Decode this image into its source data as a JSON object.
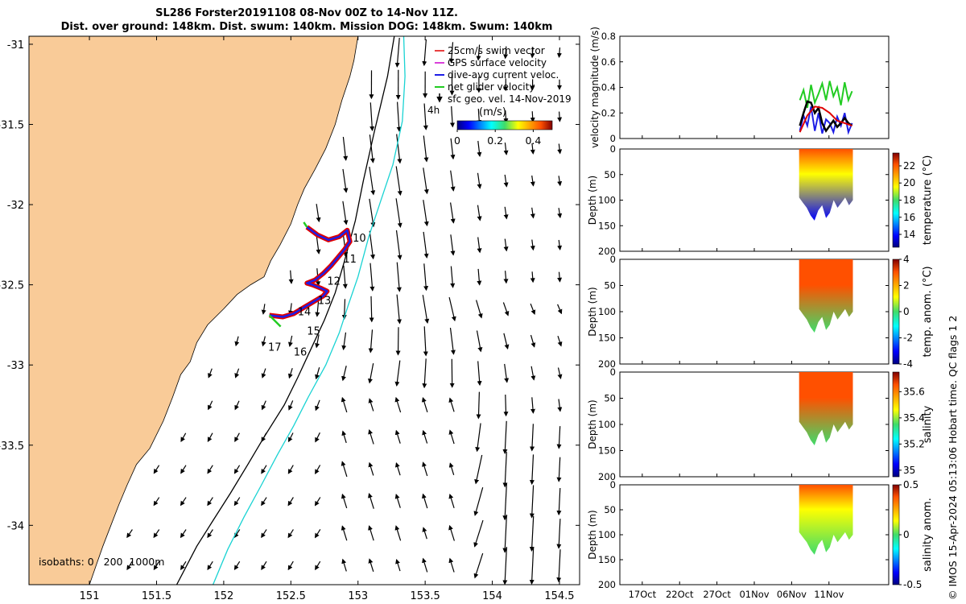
{
  "title": {
    "line1": "SL286 Forster20191108 08-Nov 00Z to 14-Nov 11Z.",
    "line2": "Dist. over ground: 148km. Dist. swum: 140km. Mission DOG: 148km. Swum: 140km"
  },
  "footer_note": "© IMOS 15-Apr-2024 05:13:06 Hobart time. QC flags 1  2",
  "colors": {
    "land": "#f9cb98",
    "sea": "#ffffff",
    "isobath_200": "#000000",
    "isobath_1000": "#19d3d3",
    "glider_swim": "#e00000",
    "glider_gps": "#cc00cc",
    "dive_avg": "#1e1ee6",
    "net_glider": "#22cc22",
    "geo_vel": "#000000"
  },
  "chart_data": [
    {
      "type": "map",
      "xlim": [
        150.55,
        154.65
      ],
      "ylim": [
        -34.37,
        -30.95
      ],
      "x_ticks": [
        "151",
        "151.5",
        "152",
        "152.5",
        "153",
        "153.5",
        "154",
        "154.5"
      ],
      "x_tick_values": [
        151,
        151.5,
        152,
        152.5,
        153,
        153.5,
        154,
        154.5
      ],
      "y_ticks": [
        "-31",
        "-31.5",
        "-32",
        "-32.5",
        "-33",
        "-33.5",
        "-34"
      ],
      "y_tick_values": [
        -31,
        -31.5,
        -32,
        -32.5,
        -33,
        -33.5,
        -34
      ],
      "legend": {
        "placement": "top-right",
        "entries": [
          {
            "label": "25cm/s swim vector",
            "color": "#e00000"
          },
          {
            "label": "GPS surface velocity",
            "color": "#cc00cc"
          },
          {
            "label": "dive-avg current veloc.",
            "color": "#1e1ee6"
          },
          {
            "label": "net glider velocity",
            "color": "#22cc22"
          },
          {
            "label": "sfc geo. vel. 14-Nov-2019",
            "color": "#000000"
          }
        ],
        "colorbar_label": "(m/s)",
        "colorbar_ticks": [
          "0",
          "0.2",
          "0.4"
        ],
        "colorbar_range": [
          0,
          0.5
        ],
        "overlay_label": "4h"
      },
      "isobaths_label": "isobaths: 0   200  1000m",
      "coastline": [
        [
          153.0,
          -30.95
        ],
        [
          152.97,
          -31.1
        ],
        [
          152.94,
          -31.2
        ],
        [
          152.88,
          -31.35
        ],
        [
          152.83,
          -31.5
        ],
        [
          152.76,
          -31.65
        ],
        [
          152.68,
          -31.78
        ],
        [
          152.6,
          -31.9
        ],
        [
          152.55,
          -32.0
        ],
        [
          152.5,
          -32.12
        ],
        [
          152.42,
          -32.25
        ],
        [
          152.35,
          -32.35
        ],
        [
          152.3,
          -32.45
        ],
        [
          152.2,
          -32.5
        ],
        [
          152.1,
          -32.56
        ],
        [
          152.0,
          -32.65
        ],
        [
          151.88,
          -32.75
        ],
        [
          151.8,
          -32.86
        ],
        [
          151.75,
          -32.98
        ],
        [
          151.68,
          -33.06
        ],
        [
          151.62,
          -33.2
        ],
        [
          151.55,
          -33.35
        ],
        [
          151.45,
          -33.52
        ],
        [
          151.35,
          -33.62
        ],
        [
          151.28,
          -33.75
        ],
        [
          151.22,
          -33.87
        ],
        [
          151.16,
          -34.0
        ],
        [
          151.1,
          -34.13
        ],
        [
          151.05,
          -34.25
        ],
        [
          151.0,
          -34.37
        ]
      ],
      "isobath_200": [
        [
          153.27,
          -30.95
        ],
        [
          153.22,
          -31.2
        ],
        [
          153.12,
          -31.55
        ],
        [
          153.04,
          -31.85
        ],
        [
          152.98,
          -32.1
        ],
        [
          152.9,
          -32.35
        ],
        [
          152.83,
          -32.55
        ],
        [
          152.75,
          -32.72
        ],
        [
          152.65,
          -32.9
        ],
        [
          152.55,
          -33.08
        ],
        [
          152.45,
          -33.25
        ],
        [
          152.3,
          -33.45
        ],
        [
          152.18,
          -33.62
        ],
        [
          152.05,
          -33.8
        ],
        [
          151.92,
          -33.97
        ],
        [
          151.8,
          -34.13
        ],
        [
          151.65,
          -34.37
        ]
      ],
      "isobath_1000": [
        [
          153.34,
          -30.95
        ],
        [
          153.35,
          -31.2
        ],
        [
          153.33,
          -31.48
        ],
        [
          153.26,
          -31.75
        ],
        [
          153.16,
          -32.0
        ],
        [
          153.08,
          -32.2
        ],
        [
          153.0,
          -32.45
        ],
        [
          152.93,
          -32.62
        ],
        [
          152.86,
          -32.8
        ],
        [
          152.76,
          -33.0
        ],
        [
          152.63,
          -33.2
        ],
        [
          152.52,
          -33.38
        ],
        [
          152.4,
          -33.56
        ],
        [
          152.28,
          -33.75
        ],
        [
          152.15,
          -33.95
        ],
        [
          152.03,
          -34.15
        ],
        [
          151.92,
          -34.37
        ]
      ],
      "glider_track": [
        [
          152.62,
          -32.14
        ],
        [
          152.7,
          -32.19
        ],
        [
          152.78,
          -32.22
        ],
        [
          152.86,
          -32.2
        ],
        [
          152.92,
          -32.16
        ],
        [
          152.94,
          -32.23
        ],
        [
          152.9,
          -32.28
        ],
        [
          152.85,
          -32.33
        ],
        [
          152.8,
          -32.38
        ],
        [
          152.74,
          -32.43
        ],
        [
          152.68,
          -32.47
        ],
        [
          152.62,
          -32.49
        ],
        [
          152.66,
          -32.5
        ],
        [
          152.72,
          -32.52
        ],
        [
          152.77,
          -32.54
        ],
        [
          152.74,
          -32.57
        ],
        [
          152.68,
          -32.6
        ],
        [
          152.6,
          -32.64
        ],
        [
          152.52,
          -32.68
        ],
        [
          152.44,
          -32.7
        ],
        [
          152.34,
          -32.69
        ]
      ],
      "track_labels": [
        {
          "text": "10",
          "lon": 152.96,
          "lat": -32.23
        },
        {
          "text": "11",
          "lon": 152.89,
          "lat": -32.36
        },
        {
          "text": "12",
          "lon": 152.77,
          "lat": -32.5
        },
        {
          "text": "13",
          "lon": 152.7,
          "lat": -32.62
        },
        {
          "text": "14",
          "lon": 152.55,
          "lat": -32.69
        },
        {
          "text": "15",
          "lon": 152.62,
          "lat": -32.81
        },
        {
          "text": "16",
          "lon": 152.52,
          "lat": -32.94
        },
        {
          "text": "17",
          "lon": 152.33,
          "lat": -32.91
        }
      ]
    },
    {
      "type": "line",
      "ylabel": "velocity magnitude (m/s)",
      "ylim": [
        0,
        0.8
      ],
      "y_ticks": [
        "0",
        "0.2",
        "0.4",
        "0.6",
        "0.8"
      ],
      "x_ticks": [
        "17Oct",
        "22Oct",
        "27Oct",
        "01Nov",
        "06Nov",
        "11Nov"
      ],
      "x_day_range": [
        14,
        50
      ],
      "x_tick_days": [
        17,
        22,
        27,
        32,
        37,
        42
      ],
      "series": [
        {
          "color": "#22cc22",
          "x": [
            38.1,
            38.6,
            39.1,
            39.6,
            40.1,
            40.6,
            41.1,
            41.6,
            42.1,
            42.6,
            43.1,
            43.6,
            44.1,
            44.6,
            45.1
          ],
          "values": [
            0.3,
            0.38,
            0.24,
            0.42,
            0.28,
            0.35,
            0.43,
            0.3,
            0.45,
            0.33,
            0.4,
            0.26,
            0.44,
            0.3,
            0.37
          ]
        },
        {
          "color": "#1e1ee6",
          "x": [
            38.1,
            38.6,
            39.1,
            39.6,
            40.1,
            40.6,
            41.1,
            41.6,
            42.1,
            42.6,
            43.1,
            43.6,
            44.1,
            44.6,
            45.1
          ],
          "values": [
            0.06,
            0.18,
            0.1,
            0.25,
            0.06,
            0.2,
            0.04,
            0.15,
            0.12,
            0.05,
            0.17,
            0.1,
            0.2,
            0.05,
            0.12
          ]
        },
        {
          "color": "#000000",
          "x": [
            38.1,
            38.6,
            39.1,
            39.6,
            40.1,
            40.6,
            41.1,
            41.6,
            42.1,
            42.6,
            43.1,
            43.6,
            44.1,
            44.6,
            45.1
          ],
          "values": [
            0.1,
            0.2,
            0.29,
            0.28,
            0.2,
            0.24,
            0.12,
            0.06,
            0.1,
            0.14,
            0.09,
            0.12,
            0.16,
            0.12,
            0.1
          ]
        },
        {
          "color": "#e00000",
          "x": [
            38.1,
            39.1,
            40.1,
            41.1,
            42.1,
            43.1,
            44.1,
            45.1
          ],
          "values": [
            0.05,
            0.18,
            0.25,
            0.24,
            0.2,
            0.14,
            0.12,
            0.1
          ]
        }
      ]
    },
    {
      "type": "heatmap",
      "ylabel": "Depth (m)",
      "ylim": [
        0,
        200
      ],
      "y_ticks": [
        "0",
        "50",
        "100",
        "150",
        "200"
      ],
      "colorbar_label": "temperature (°C)",
      "colorbar_ticks": [
        "14",
        "16",
        "18",
        "20",
        "22"
      ],
      "colorbar_range": [
        12.5,
        23.5
      ],
      "surface_value": 22,
      "bottom_value": 13.5
    },
    {
      "type": "heatmap",
      "ylabel": "Depth (m)",
      "ylim": [
        0,
        200
      ],
      "y_ticks": [
        "0",
        "50",
        "100",
        "150",
        "200"
      ],
      "colorbar_label": "temp. anom. (°C)",
      "colorbar_ticks": [
        "-4",
        "-2",
        "0",
        "2",
        "4"
      ],
      "colorbar_range": [
        -4,
        4
      ],
      "surface_value": 2.2,
      "bottom_value": -0.3
    },
    {
      "type": "heatmap",
      "ylabel": "Depth (m)",
      "ylim": [
        0,
        200
      ],
      "y_ticks": [
        "0",
        "50",
        "100",
        "150",
        "200"
      ],
      "colorbar_label": "salinity",
      "colorbar_ticks": [
        "35",
        "35.2",
        "35.4",
        "35.6"
      ],
      "colorbar_range": [
        34.95,
        35.75
      ],
      "surface_value": 35.62,
      "bottom_value": 35.25
    },
    {
      "type": "heatmap",
      "ylabel": "Depth (m)",
      "ylim": [
        0,
        200
      ],
      "y_ticks": [
        "0",
        "50",
        "100",
        "150",
        "200"
      ],
      "colorbar_label": "salinity anom.",
      "colorbar_ticks": [
        "-0.5",
        "0",
        "0.5"
      ],
      "colorbar_range": [
        -0.5,
        0.5
      ],
      "surface_value": 0.15,
      "bottom_value": 0.0
    }
  ]
}
